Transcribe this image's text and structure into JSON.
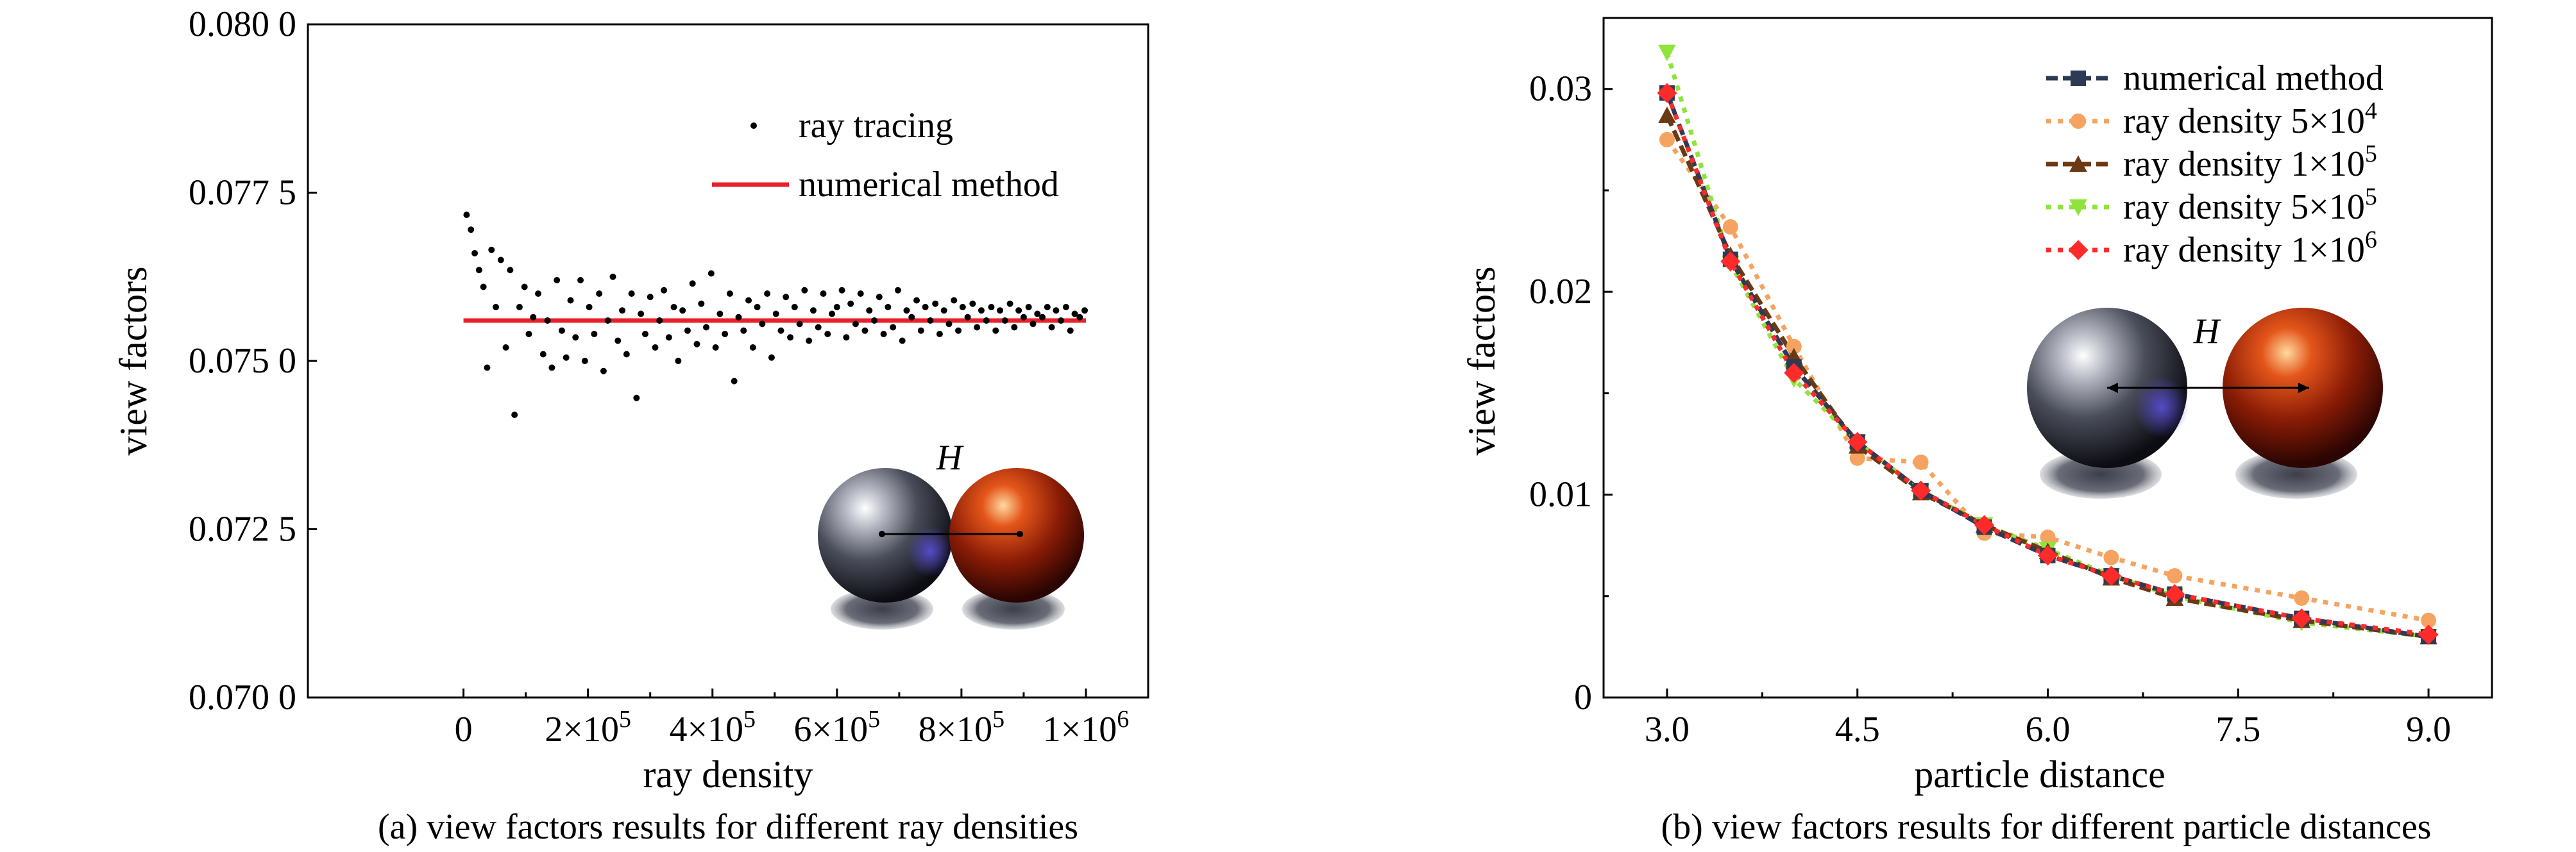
{
  "chart_data": [
    {
      "type": "scatter",
      "caption": "(a) view factors results for different ray densities",
      "xlabel": "ray density",
      "ylabel": "view factors",
      "xlim": [
        -250000,
        1100000
      ],
      "ylim": [
        0.07,
        0.08
      ],
      "x_ticks": [
        0,
        200000,
        400000,
        600000,
        800000,
        1000000
      ],
      "x_tick_labels": [
        {
          "base": "0",
          "exp": ""
        },
        {
          "base": "2×10",
          "exp": "5"
        },
        {
          "base": "4×10",
          "exp": "5"
        },
        {
          "base": "6×10",
          "exp": "5"
        },
        {
          "base": "8×10",
          "exp": "5"
        },
        {
          "base": "1×10",
          "exp": "6"
        }
      ],
      "y_ticks": [
        0.07,
        0.0725,
        0.075,
        0.0775,
        0.08
      ],
      "y_tick_labels": [
        "0.070 0",
        "0.072 5",
        "0.075 0",
        "0.077 5",
        "0.080 0"
      ],
      "legend": {
        "placement": "top-right",
        "entries": [
          "ray tracing",
          "numerical method"
        ]
      },
      "inset_label": "H",
      "series": [
        {
          "name": "ray tracing",
          "kind": "scatter",
          "color": "#000000",
          "x": [
            5000,
            12000,
            18000,
            25000,
            32000,
            38000,
            45000,
            52000,
            60000,
            68000,
            75000,
            82000,
            90000,
            98000,
            105000,
            112000,
            120000,
            128000,
            135000,
            142000,
            150000,
            158000,
            165000,
            172000,
            180000,
            188000,
            195000,
            202000,
            210000,
            218000,
            225000,
            232000,
            240000,
            248000,
            255000,
            262000,
            270000,
            278000,
            285000,
            292000,
            300000,
            308000,
            315000,
            322000,
            330000,
            338000,
            345000,
            352000,
            360000,
            368000,
            375000,
            382000,
            390000,
            398000,
            405000,
            412000,
            420000,
            428000,
            435000,
            442000,
            450000,
            458000,
            465000,
            472000,
            480000,
            488000,
            495000,
            502000,
            510000,
            518000,
            525000,
            532000,
            540000,
            548000,
            555000,
            562000,
            570000,
            578000,
            585000,
            592000,
            600000,
            608000,
            615000,
            622000,
            630000,
            638000,
            645000,
            652000,
            660000,
            668000,
            675000,
            682000,
            690000,
            698000,
            705000,
            712000,
            720000,
            728000,
            735000,
            742000,
            750000,
            758000,
            765000,
            772000,
            780000,
            788000,
            795000,
            802000,
            810000,
            818000,
            825000,
            832000,
            840000,
            848000,
            855000,
            862000,
            870000,
            878000,
            885000,
            892000,
            900000,
            908000,
            915000,
            922000,
            930000,
            938000,
            945000,
            952000,
            960000,
            968000,
            975000,
            982000,
            990000,
            998000
          ],
          "y": [
            0.07717,
            0.07695,
            0.0766,
            0.07635,
            0.0761,
            0.0749,
            0.07665,
            0.0758,
            0.0765,
            0.0752,
            0.07635,
            0.0742,
            0.0758,
            0.0761,
            0.0754,
            0.07565,
            0.076,
            0.0751,
            0.0756,
            0.0749,
            0.0762,
            0.07545,
            0.07505,
            0.0759,
            0.07535,
            0.0762,
            0.075,
            0.0758,
            0.0754,
            0.076,
            0.07485,
            0.0756,
            0.07625,
            0.0753,
            0.07575,
            0.0751,
            0.076,
            0.07445,
            0.0757,
            0.0754,
            0.07595,
            0.0752,
            0.0756,
            0.07605,
            0.07535,
            0.0758,
            0.075,
            0.07575,
            0.07545,
            0.07615,
            0.07525,
            0.07585,
            0.0755,
            0.0763,
            0.0752,
            0.0757,
            0.0754,
            0.076,
            0.0747,
            0.07565,
            0.07545,
            0.0759,
            0.0752,
            0.0758,
            0.07555,
            0.076,
            0.07505,
            0.0757,
            0.07545,
            0.07595,
            0.07535,
            0.0758,
            0.07555,
            0.07605,
            0.0753,
            0.07575,
            0.0755,
            0.076,
            0.0754,
            0.0757,
            0.0758,
            0.07605,
            0.07535,
            0.07585,
            0.07555,
            0.076,
            0.07545,
            0.07575,
            0.0756,
            0.07595,
            0.0754,
            0.0758,
            0.0755,
            0.07605,
            0.0753,
            0.07575,
            0.07565,
            0.0759,
            0.07545,
            0.0758,
            0.0756,
            0.07585,
            0.0754,
            0.07575,
            0.07555,
            0.0759,
            0.07545,
            0.0758,
            0.07565,
            0.07585,
            0.0755,
            0.07575,
            0.0756,
            0.0758,
            0.07545,
            0.07575,
            0.0756,
            0.07585,
            0.0755,
            0.07575,
            0.07565,
            0.0758,
            0.07555,
            0.0757,
            0.07565,
            0.0758,
            0.0755,
            0.07575,
            0.0756,
            0.0758,
            0.07545,
            0.0757,
            0.07565,
            0.07575
          ]
        },
        {
          "name": "numerical method",
          "kind": "line",
          "color": "#e8202a",
          "x": [
            0,
            1000000
          ],
          "y": [
            0.0756,
            0.0756
          ]
        }
      ]
    },
    {
      "type": "line",
      "caption": "(b) view factors results for different particle distances",
      "xlabel": "particle distance",
      "ylabel": "view factors",
      "xlim": [
        2.5,
        9.5
      ],
      "ylim": [
        0,
        0.0335
      ],
      "x_ticks": [
        3.0,
        4.5,
        6.0,
        7.5,
        9.0
      ],
      "x_tick_labels": [
        "3.0",
        "4.5",
        "6.0",
        "7.5",
        "9.0"
      ],
      "y_ticks": [
        0,
        0.01,
        0.02,
        0.03
      ],
      "y_tick_labels": [
        "0",
        "0.01",
        "0.02",
        "0.03"
      ],
      "legend": {
        "placement": "top-right",
        "entries": [
          {
            "base": "numerical method",
            "exp": ""
          },
          {
            "base": "ray density 5×10",
            "exp": "4"
          },
          {
            "base": "ray density 1×10",
            "exp": "5"
          },
          {
            "base": "ray density 5×10",
            "exp": "5"
          },
          {
            "base": "ray density 1×10",
            "exp": "6"
          }
        ]
      },
      "inset_label": "H",
      "x": [
        3.0,
        3.5,
        4.0,
        4.5,
        5.0,
        5.5,
        6.0,
        6.5,
        7.0,
        8.0,
        9.0
      ],
      "series": [
        {
          "name": "numerical method",
          "color": "#2e3a55",
          "marker": "square",
          "dash": "dash",
          "values": [
            0.0298,
            0.0216,
            0.0163,
            0.0126,
            0.0102,
            0.0084,
            0.007,
            0.006,
            0.0051,
            0.0039,
            0.003
          ]
        },
        {
          "name": "ray density 5×10^4",
          "color": "#f4a460",
          "marker": "circle",
          "dash": "dot",
          "values": [
            0.0275,
            0.0232,
            0.0173,
            0.0118,
            0.0116,
            0.0081,
            0.0079,
            0.0069,
            0.006,
            0.0049,
            0.0038
          ]
        },
        {
          "name": "ray density 1×10^5",
          "color": "#6b3a12",
          "marker": "triangle-up",
          "dash": "dash",
          "values": [
            0.0287,
            0.0218,
            0.0168,
            0.0124,
            0.0101,
            0.0085,
            0.0072,
            0.0059,
            0.0049,
            0.0038,
            0.003
          ]
        },
        {
          "name": "ray density 5×10^5",
          "color": "#8fe33a",
          "marker": "triangle-down",
          "dash": "dot",
          "values": [
            0.0318,
            0.0214,
            0.0157,
            0.0126,
            0.0102,
            0.0085,
            0.0073,
            0.006,
            0.005,
            0.0037,
            0.003
          ]
        },
        {
          "name": "ray density 1×10^6",
          "color": "#ff2a2a",
          "marker": "diamond",
          "dash": "dot",
          "values": [
            0.0298,
            0.0215,
            0.016,
            0.0126,
            0.0102,
            0.0085,
            0.007,
            0.006,
            0.0051,
            0.0039,
            0.0031
          ]
        }
      ]
    }
  ]
}
